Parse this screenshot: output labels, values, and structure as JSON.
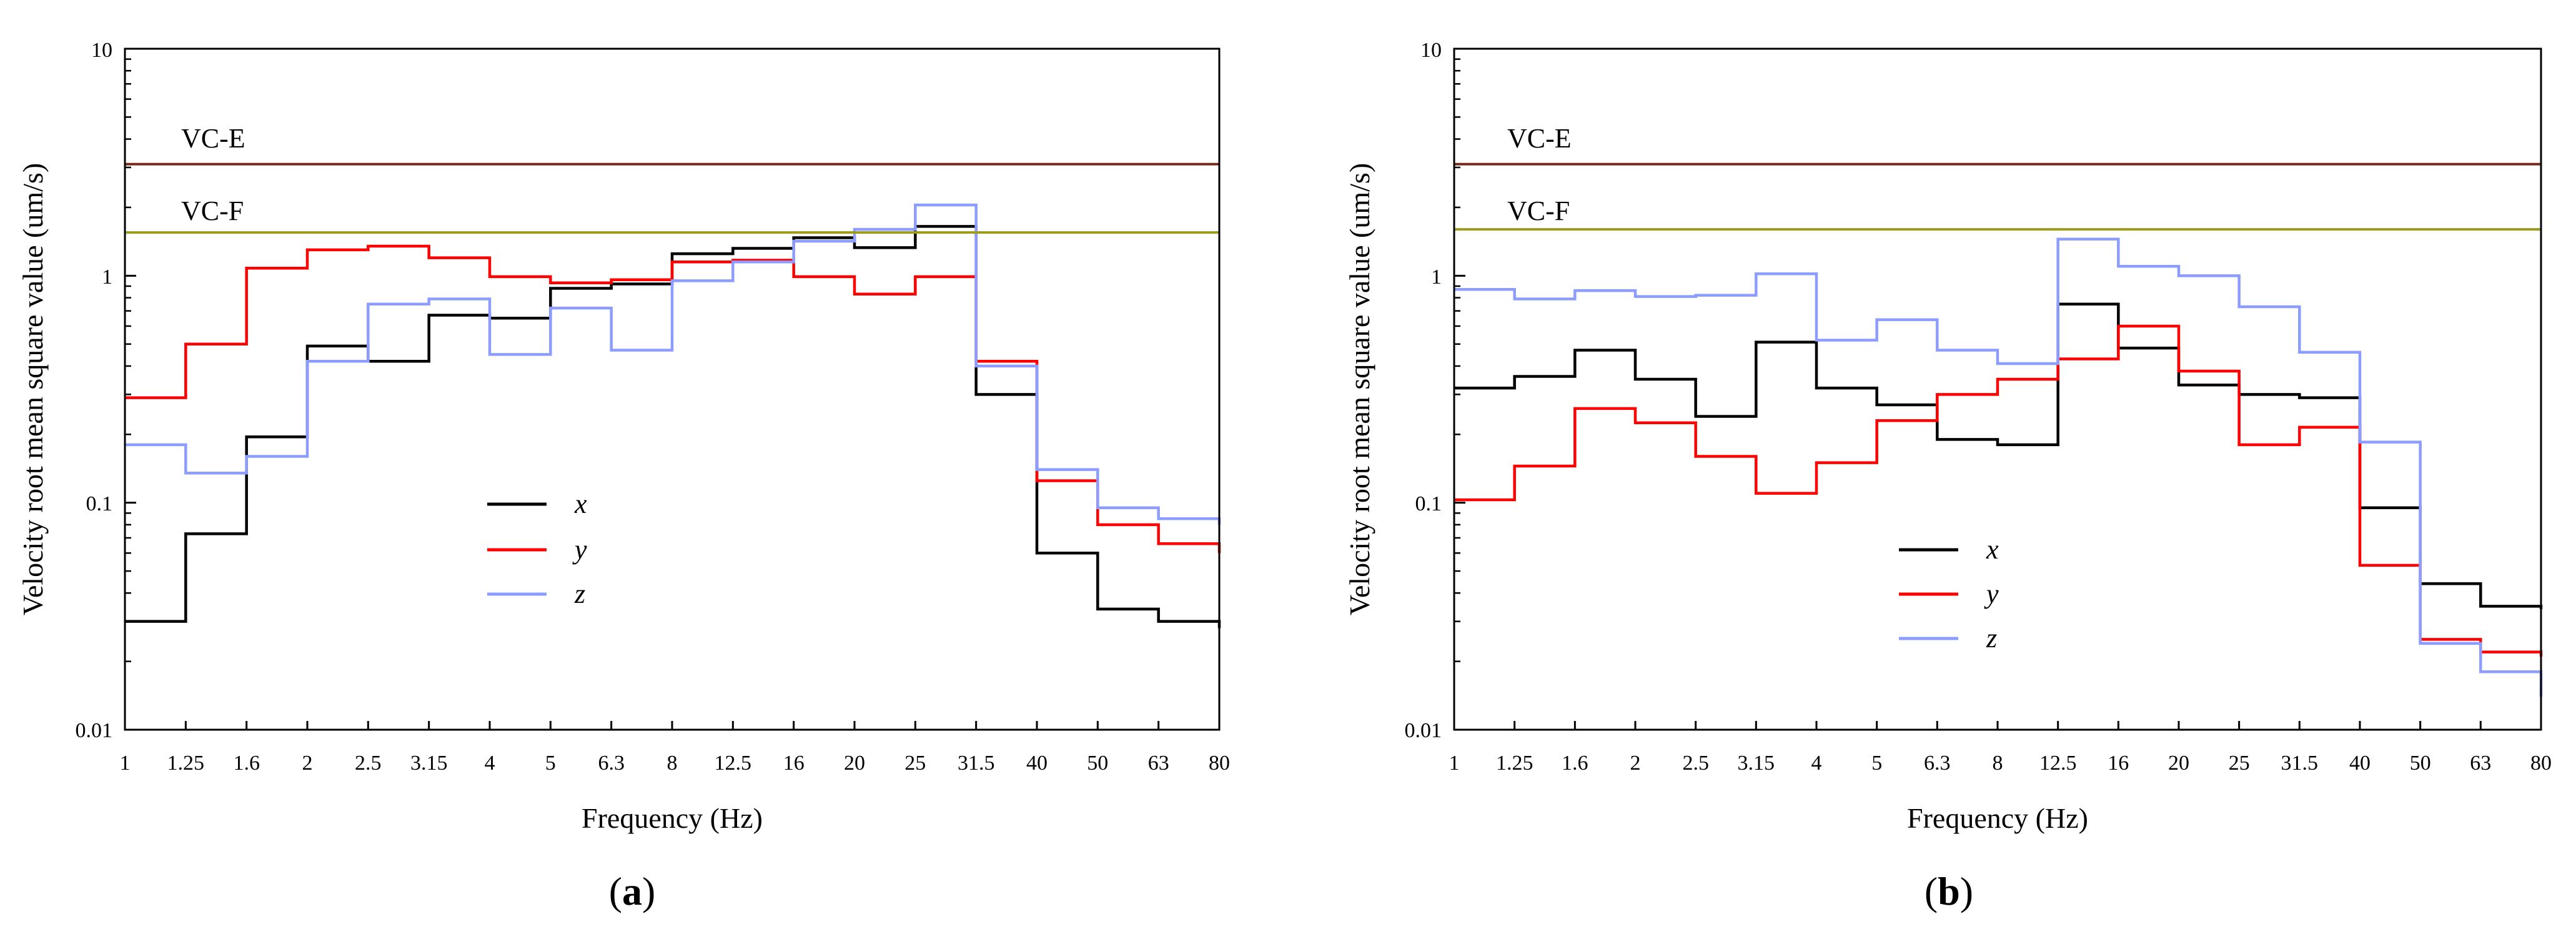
{
  "colors": {
    "x": "#000000",
    "y": "#ff0000",
    "z": "#8c9cff",
    "vc_e": "#7a2a18",
    "vc_f": "#9c9c1a",
    "axis": "#000000"
  },
  "chart_data": [
    {
      "type": "line",
      "panel_label": "a",
      "xlabel": "Frequency (Hz)",
      "ylabel": "Velocity root mean square value (um/s)",
      "yscale": "log",
      "ylim": [
        0.01,
        10
      ],
      "y_ticks": [
        "0.01",
        "0.1",
        "1",
        "10"
      ],
      "categories": [
        "1",
        "1.25",
        "1.6",
        "2",
        "2.5",
        "3.15",
        "4",
        "5",
        "6.3",
        "8",
        "12.5",
        "16",
        "20",
        "25",
        "31.5",
        "40",
        "50",
        "63",
        "80"
      ],
      "reference_lines": [
        {
          "name": "VC-E",
          "value": 3.1
        },
        {
          "name": "VC-F",
          "value": 1.55
        }
      ],
      "legend": {
        "entries": [
          "x",
          "y",
          "z"
        ],
        "position": "center-left"
      },
      "series": [
        {
          "name": "x",
          "values": [
            0.03,
            0.073,
            0.195,
            0.49,
            0.42,
            0.67,
            0.65,
            0.88,
            0.92,
            1.25,
            1.32,
            1.47,
            1.33,
            1.65,
            0.3,
            0.06,
            0.034,
            0.03,
            0.028
          ]
        },
        {
          "name": "y",
          "values": [
            0.29,
            0.5,
            1.08,
            1.3,
            1.35,
            1.2,
            0.99,
            0.93,
            0.96,
            1.15,
            1.17,
            0.99,
            0.83,
            0.99,
            0.42,
            0.125,
            0.08,
            0.066,
            0.06
          ]
        },
        {
          "name": "z",
          "values": [
            0.18,
            0.135,
            0.16,
            0.42,
            0.75,
            0.79,
            0.45,
            0.72,
            0.47,
            0.95,
            1.15,
            1.42,
            1.6,
            2.05,
            0.4,
            0.14,
            0.095,
            0.085,
            0.08
          ]
        }
      ]
    },
    {
      "type": "line",
      "panel_label": "b",
      "xlabel": "Frequency (Hz)",
      "ylabel": "Velocity root mean square value (um/s)",
      "yscale": "log",
      "ylim": [
        0.01,
        10
      ],
      "y_ticks": [
        "0.01",
        "0.1",
        "1",
        "10"
      ],
      "categories": [
        "1",
        "1.25",
        "1.6",
        "2",
        "2.5",
        "3.15",
        "4",
        "5",
        "6.3",
        "8",
        "12.5",
        "16",
        "20",
        "25",
        "31.5",
        "40",
        "50",
        "63",
        "80"
      ],
      "reference_lines": [
        {
          "name": "VC-E",
          "value": 3.1
        },
        {
          "name": "VC-F",
          "value": 1.6
        }
      ],
      "legend": {
        "entries": [
          "x",
          "y",
          "z"
        ],
        "position": "bottom-center"
      },
      "series": [
        {
          "name": "x",
          "values": [
            0.32,
            0.36,
            0.47,
            0.35,
            0.24,
            0.51,
            0.32,
            0.27,
            0.19,
            0.18,
            0.75,
            0.48,
            0.33,
            0.3,
            0.29,
            0.095,
            0.044,
            0.035,
            0.034
          ]
        },
        {
          "name": "y",
          "values": [
            0.103,
            0.145,
            0.26,
            0.225,
            0.16,
            0.11,
            0.15,
            0.23,
            0.3,
            0.35,
            0.43,
            0.6,
            0.38,
            0.18,
            0.215,
            0.053,
            0.025,
            0.022,
            0.021
          ]
        },
        {
          "name": "z",
          "values": [
            0.87,
            0.79,
            0.86,
            0.81,
            0.82,
            1.02,
            0.52,
            0.64,
            0.47,
            0.41,
            1.45,
            1.1,
            1.0,
            0.73,
            0.46,
            0.185,
            0.024,
            0.018,
            0.014
          ]
        }
      ]
    }
  ]
}
